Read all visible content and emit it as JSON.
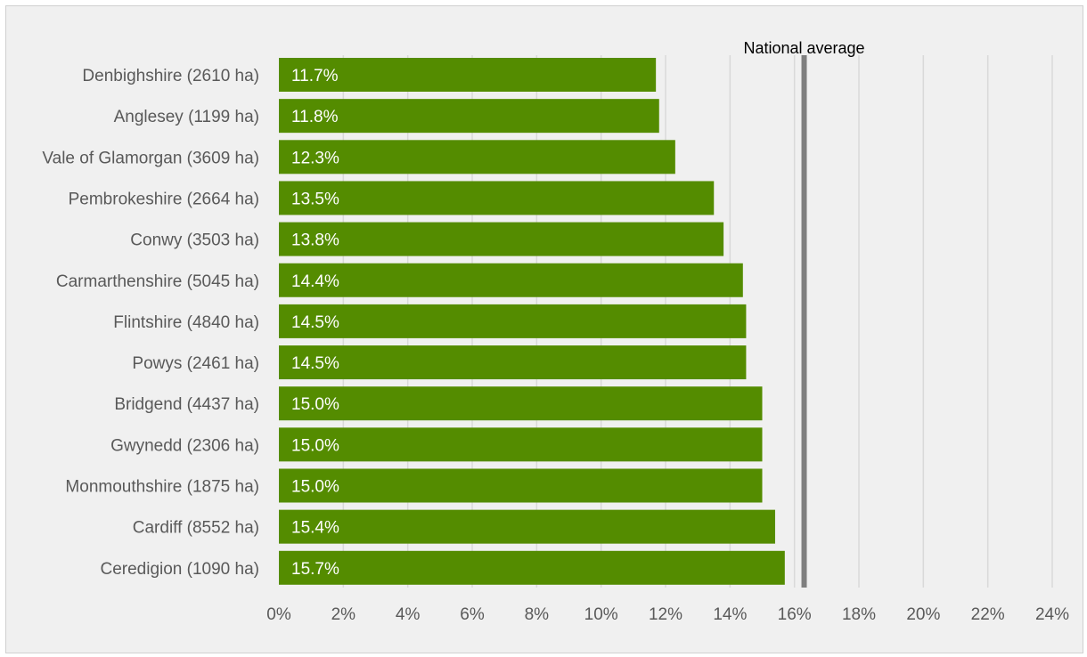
{
  "chart_data": {
    "type": "bar",
    "orientation": "horizontal",
    "categories": [
      "Denbighshire (2610 ha)",
      "Anglesey (1199 ha)",
      "Vale of Glamorgan (3609 ha)",
      "Pembrokeshire (2664 ha)",
      "Conwy (3503 ha)",
      "Carmarthenshire (5045 ha)",
      "Flintshire (4840 ha)",
      "Powys (2461 ha)",
      "Bridgend (4437 ha)",
      "Gwynedd (2306 ha)",
      "Monmouthshire (1875 ha)",
      "Cardiff (8552 ha)",
      "Ceredigion (1090 ha)"
    ],
    "values": [
      11.7,
      11.8,
      12.3,
      13.5,
      13.8,
      14.4,
      14.5,
      14.5,
      15.0,
      15.0,
      15.0,
      15.4,
      15.7
    ],
    "data_labels": [
      "11.7%",
      "11.8%",
      "12.3%",
      "13.5%",
      "13.8%",
      "14.4%",
      "14.5%",
      "14.5%",
      "15.0%",
      "15.0%",
      "15.0%",
      "15.4%",
      "15.7%"
    ],
    "xlim": [
      0,
      24
    ],
    "x_ticks": [
      0,
      2,
      4,
      6,
      8,
      10,
      12,
      14,
      16,
      18,
      20,
      22,
      24
    ],
    "x_tick_labels": [
      "0%",
      "2%",
      "4%",
      "6%",
      "8%",
      "10%",
      "12%",
      "14%",
      "16%",
      "18%",
      "20%",
      "22%",
      "24%"
    ],
    "reference_line": {
      "label": "National average",
      "value": 16.3
    },
    "grid": true,
    "legend": "none",
    "colors": {
      "bar": "#548c00",
      "reference": "#7f7f7f",
      "grid": "#d9d9d9",
      "background": "#f0f0f0"
    }
  }
}
